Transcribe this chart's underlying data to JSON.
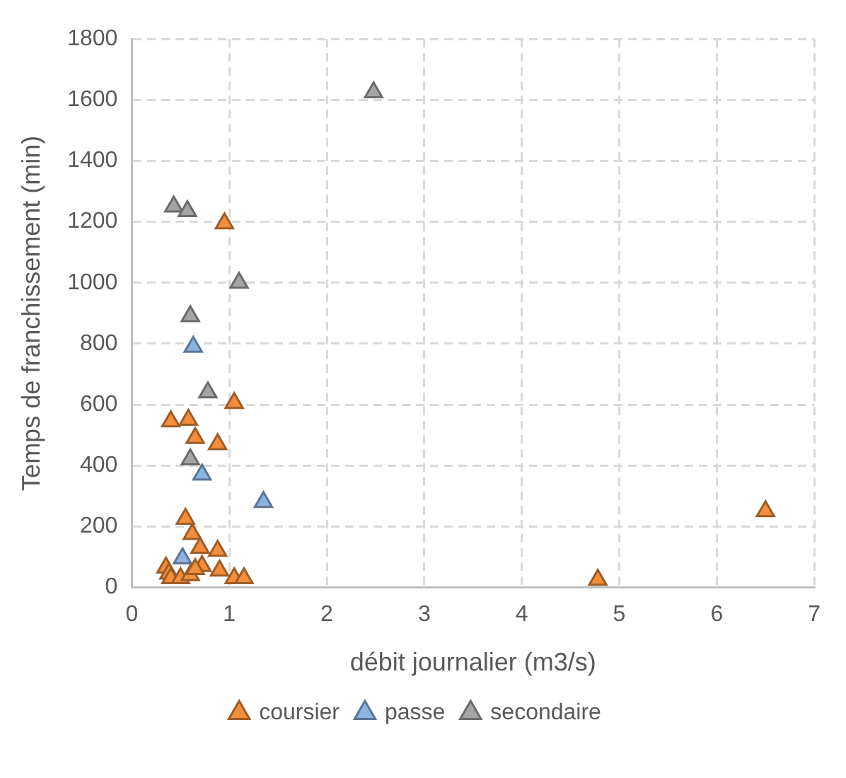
{
  "chart_data": {
    "type": "scatter",
    "xlabel": "débit journalier (m3/s)",
    "ylabel": "Temps de franchissement (min)",
    "xlim": [
      0,
      7
    ],
    "xticks": [
      0,
      1,
      2,
      3,
      4,
      5,
      6,
      7
    ],
    "ylim": [
      0,
      1800
    ],
    "yticks": [
      0,
      200,
      400,
      600,
      800,
      1000,
      1200,
      1400,
      1600,
      1800
    ],
    "grid": true,
    "legend": "bottom",
    "marker": "triangle",
    "series": [
      {
        "name": "coursier",
        "color": "#f28e3c",
        "x": [
          0.35,
          0.38,
          0.4,
          0.5,
          0.6,
          0.55,
          0.58,
          0.4,
          0.62,
          0.65,
          0.7,
          0.72,
          0.65,
          0.88,
          0.88,
          0.9,
          0.95,
          1.05,
          1.05,
          1.15,
          4.78,
          6.5
        ],
        "values": [
          65,
          45,
          30,
          30,
          40,
          225,
          550,
          545,
          175,
          490,
          130,
          70,
          60,
          120,
          470,
          55,
          1195,
          30,
          605,
          30,
          25,
          250
        ]
      },
      {
        "name": "passe",
        "color": "#8db3e2",
        "x": [
          0.52,
          0.63,
          0.72,
          1.35
        ],
        "values": [
          95,
          790,
          370,
          280
        ]
      },
      {
        "name": "secondaire",
        "color": "#a5a5a5",
        "x": [
          0.43,
          0.57,
          0.6,
          0.78,
          0.6,
          1.1,
          2.48
        ],
        "values": [
          1250,
          1235,
          890,
          640,
          420,
          1000,
          1625
        ]
      }
    ]
  }
}
